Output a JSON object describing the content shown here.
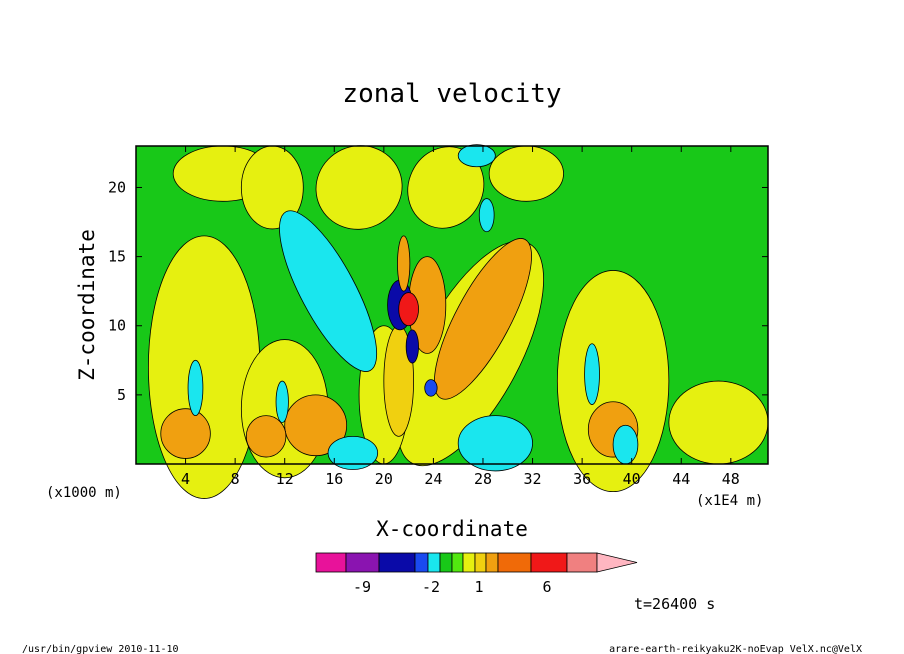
{
  "chart_data": {
    "type": "heatmap",
    "title": "zonal velocity",
    "xlabel": "X-coordinate",
    "ylabel": "Z-coordinate",
    "x_unit": "(x1E4 m)",
    "y_unit": "(x1000 m)",
    "xlim": [
      0,
      51
    ],
    "ylim": [
      0,
      23
    ],
    "x_ticks": [
      4,
      8,
      12,
      16,
      20,
      24,
      28,
      32,
      36,
      40,
      44,
      48
    ],
    "y_ticks": [
      5,
      10,
      15,
      20
    ],
    "time_label": "t=26400 s",
    "colorbar": {
      "colors": [
        "#e8129a",
        "#8a14b0",
        "#0a0aa8",
        "#1a4af0",
        "#1ae6ee",
        "#18c818",
        "#52e810",
        "#e6f010",
        "#f0d010",
        "#f0a010",
        "#f06a08",
        "#f01818",
        "#f08080",
        "#ffb6c1"
      ],
      "tick_labels": [
        "-9",
        "-2",
        "1",
        "6"
      ]
    }
  },
  "footer": {
    "left": "/usr/bin/gpview   2010-11-10",
    "right": "arare-earth-reikyaku2K-noEvap_VelX.nc@VelX"
  }
}
